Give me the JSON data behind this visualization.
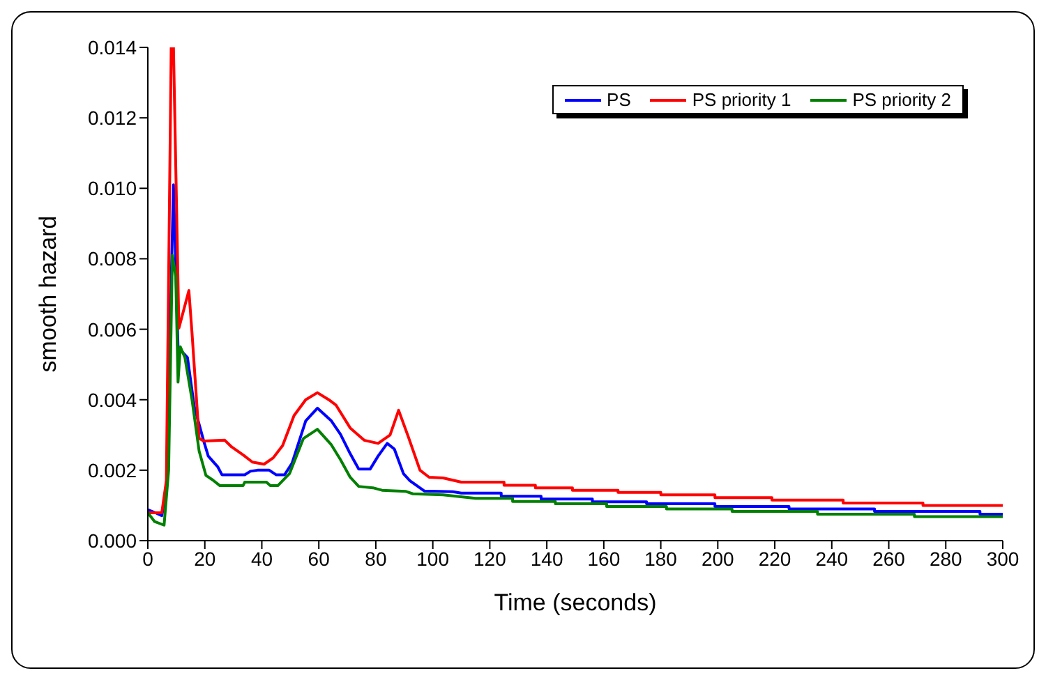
{
  "chart_data": {
    "type": "line",
    "xlabel": "Time (seconds)",
    "ylabel": "smooth hazard",
    "xlim": [
      0,
      300
    ],
    "xticks": [
      0,
      20,
      40,
      60,
      80,
      100,
      120,
      140,
      160,
      180,
      200,
      220,
      240,
      260,
      280,
      300
    ],
    "ylim": [
      0,
      0.014
    ],
    "yticks": [
      {
        "value": 0,
        "label": "0.000"
      },
      {
        "value": 0.002,
        "label": "0.002"
      },
      {
        "value": 0.004,
        "label": "0.004"
      },
      {
        "value": 0.006,
        "label": "0.006"
      },
      {
        "value": 0.008,
        "label": "0.008"
      },
      {
        "value": 0.01,
        "label": "0.010"
      },
      {
        "value": 0.012,
        "label": "0.012"
      },
      {
        "value": 0.014,
        "label": "0.014"
      }
    ],
    "grid": false,
    "legend": "top right",
    "marker": "none",
    "line_style": "solid",
    "series": [
      {
        "name": "PS",
        "color": "#0000ff",
        "x": [
          0,
          2.4,
          4.9,
          6.5,
          9,
          10.6,
          12.7,
          13.9,
          16.3,
          19.6,
          21.2,
          24.5,
          26,
          34,
          36,
          38.5,
          42.6,
          45,
          48,
          50.6,
          55.4,
          59.5,
          64.4,
          67.6,
          71,
          74,
          78,
          80.8,
          84,
          86.5,
          89.7,
          92,
          97,
          107,
          110,
          124,
          124,
          138,
          138,
          156,
          156,
          175,
          175,
          199,
          199,
          225,
          225,
          255,
          255,
          292,
          292,
          300
        ],
        "values": [
          0.00088,
          0.0008,
          0.00071,
          0.0014,
          0.0101,
          0.0055,
          0.0053,
          0.0052,
          0.0038,
          0.00283,
          0.0024,
          0.0021,
          0.00187,
          0.00187,
          0.00197,
          0.002,
          0.002,
          0.00187,
          0.00187,
          0.0022,
          0.0034,
          0.00376,
          0.0034,
          0.00302,
          0.00247,
          0.00203,
          0.00203,
          0.0024,
          0.00276,
          0.0026,
          0.0019,
          0.0017,
          0.00141,
          0.00139,
          0.00135,
          0.00135,
          0.00126,
          0.00126,
          0.00118,
          0.00118,
          0.0011,
          0.0011,
          0.00105,
          0.00105,
          0.00097,
          0.00097,
          0.0009,
          0.0009,
          0.00083,
          0.00083,
          0.00075,
          0.00075
        ]
      },
      {
        "name": "PS priority 1",
        "color": "#ff0000",
        "x": [
          0,
          4.9,
          6.5,
          8.2,
          9,
          10.9,
          14.4,
          15.5,
          18,
          19.6,
          27,
          29.4,
          33.5,
          36.7,
          40.8,
          44,
          47.3,
          51.3,
          55.4,
          59.5,
          63.5,
          66,
          71,
          75.9,
          80.8,
          85,
          88,
          91.4,
          95.5,
          98.7,
          103.6,
          110,
          125,
          125,
          136,
          136,
          149,
          149,
          165,
          165,
          180,
          180,
          199,
          199,
          219,
          219,
          244,
          244,
          272,
          272,
          300
        ],
        "values": [
          0.00079,
          0.00079,
          0.0017,
          0.014,
          0.014,
          0.00603,
          0.0071,
          0.0059,
          0.0029,
          0.00283,
          0.00285,
          0.00266,
          0.00243,
          0.00223,
          0.00217,
          0.00235,
          0.0027,
          0.00355,
          0.004,
          0.0042,
          0.004,
          0.00385,
          0.0032,
          0.00285,
          0.00276,
          0.003,
          0.0037,
          0.00295,
          0.002,
          0.0018,
          0.00178,
          0.00166,
          0.00166,
          0.00157,
          0.00157,
          0.0015,
          0.0015,
          0.00143,
          0.00143,
          0.00137,
          0.00137,
          0.0013,
          0.0013,
          0.00122,
          0.00122,
          0.00115,
          0.00115,
          0.00107,
          0.00107,
          0.001,
          0.001
        ]
      },
      {
        "name": "PS priority 2",
        "color": "#008000",
        "x": [
          0,
          2.4,
          5.7,
          7.3,
          8.6,
          9.8,
          10.6,
          11.4,
          13,
          15.5,
          18,
          20.4,
          22.8,
          25.3,
          33.4,
          34,
          41.6,
          43,
          45.6,
          49.7,
          54.6,
          59.5,
          64.4,
          67.6,
          71,
          74,
          79,
          82.2,
          90.4,
          93,
          103.6,
          115,
          128,
          128,
          143,
          143,
          161,
          161,
          182,
          182,
          205,
          205,
          235,
          235,
          269,
          269,
          300
        ],
        "values": [
          0.00079,
          0.00054,
          0.00044,
          0.002,
          0.0081,
          0.0075,
          0.0045,
          0.0055,
          0.0052,
          0.004,
          0.00254,
          0.00185,
          0.00172,
          0.00156,
          0.00156,
          0.00166,
          0.00166,
          0.00156,
          0.00156,
          0.0019,
          0.0029,
          0.00316,
          0.00272,
          0.0023,
          0.0018,
          0.00154,
          0.0015,
          0.00143,
          0.0014,
          0.00133,
          0.0013,
          0.0012,
          0.0012,
          0.00111,
          0.00111,
          0.00105,
          0.00105,
          0.00097,
          0.00097,
          0.0009,
          0.0009,
          0.00083,
          0.00083,
          0.00075,
          0.00075,
          0.00068,
          0.00068
        ]
      }
    ]
  }
}
